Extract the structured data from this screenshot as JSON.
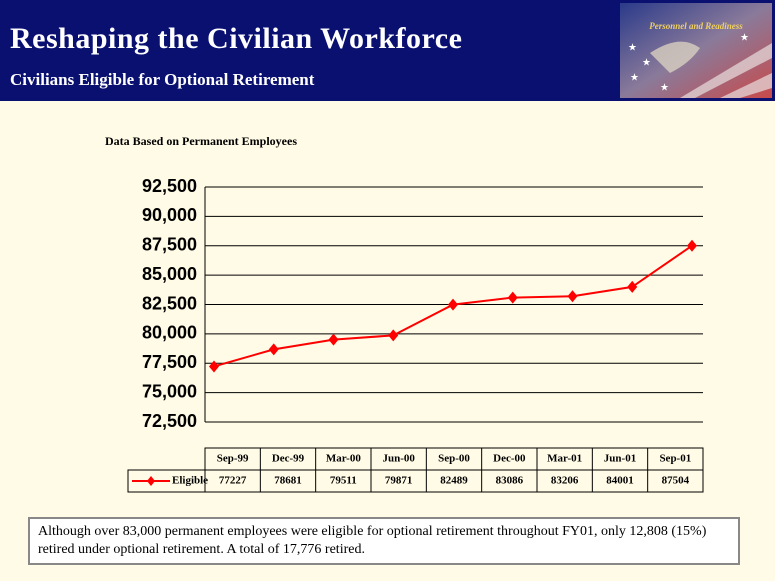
{
  "header": {
    "title": "Reshaping the Civilian Workforce",
    "subtitle": "Civilians Eligible for Optional Retirement",
    "badge": "Personnel and Readiness"
  },
  "chart_data": {
    "type": "line",
    "title": "Data Based on Permanent Employees",
    "categories": [
      "Sep-99",
      "Dec-99",
      "Mar-00",
      "Jun-00",
      "Sep-00",
      "Dec-00",
      "Mar-01",
      "Jun-01",
      "Sep-01"
    ],
    "series": [
      {
        "name": "Eligible",
        "color": "#ff0000",
        "values": [
          77227,
          78681,
          79511,
          79871,
          82489,
          83086,
          83206,
          84001,
          87504
        ]
      }
    ],
    "ylim": [
      72500,
      92500
    ],
    "yticks": [
      {
        "value": 72500,
        "label": "72,500"
      },
      {
        "value": 75000,
        "label": "75,000"
      },
      {
        "value": 77500,
        "label": "77,500"
      },
      {
        "value": 80000,
        "label": "80,000"
      },
      {
        "value": 82500,
        "label": "82,500"
      },
      {
        "value": 85000,
        "label": "85,000"
      },
      {
        "value": 87500,
        "label": "87,500"
      },
      {
        "value": 90000,
        "label": "90,000"
      },
      {
        "value": 92500,
        "label": "92,500"
      }
    ],
    "grid": true,
    "data_table": true
  },
  "note": "Although over 83,000 permanent employees were eligible for optional retirement throughout FY01, only 12,808 (15%) retired under optional retirement.  A total of 17,776 retired."
}
